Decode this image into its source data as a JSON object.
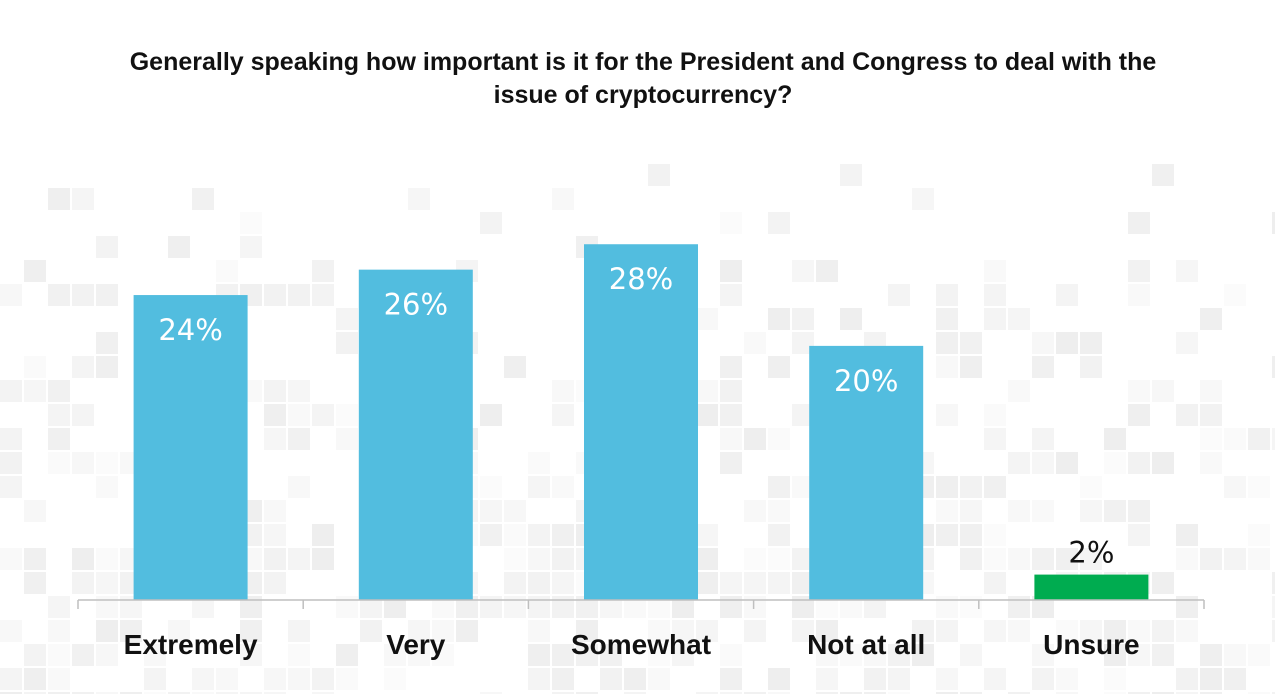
{
  "chart_data": {
    "type": "bar",
    "title": "Generally speaking how important is it for the President and Congress to deal with the issue of cryptocurrency?",
    "categories": [
      "Extremely",
      "Very",
      "Somewhat",
      "Not at all",
      "Unsure"
    ],
    "values": [
      24,
      26,
      28,
      20,
      2
    ],
    "value_labels": [
      "24%",
      "26%",
      "28%",
      "20%",
      "2%"
    ],
    "unit": "%",
    "ylim": [
      0,
      34
    ],
    "grid": false,
    "legend": "none",
    "colors": {
      "default_bar": "#52BDDF",
      "highlight_bar": "#00AC50",
      "highlight_category": "Unsure",
      "axis": "#BFBFBF"
    }
  }
}
